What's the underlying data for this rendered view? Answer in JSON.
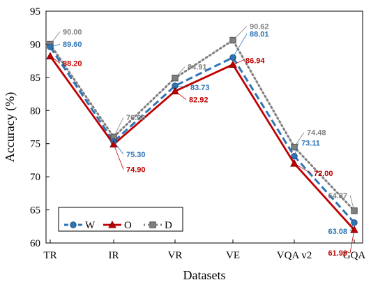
{
  "chart_data": {
    "type": "line",
    "title": "",
    "xlabel": "Datasets",
    "ylabel": "Accuracy (%)",
    "categories": [
      "TR",
      "IR",
      "VR",
      "VE",
      "VQA v2",
      "GQA"
    ],
    "ylim": [
      60,
      95
    ],
    "yticks": [
      60,
      65,
      70,
      75,
      80,
      85,
      90,
      95
    ],
    "grid": false,
    "legend_position": "bottom-left",
    "series": [
      {
        "name": "W",
        "values": [
          89.6,
          75.3,
          83.73,
          88.01,
          73.11,
          63.08
        ],
        "labels": [
          "89.60",
          "75.30",
          "83.73",
          "88.01",
          "73.11",
          "63.08"
        ],
        "color": "#2e75b6",
        "line_style": "dashed",
        "marker": "circle"
      },
      {
        "name": "O",
        "values": [
          88.2,
          74.9,
          82.92,
          86.94,
          72.0,
          61.99
        ],
        "labels": [
          "88.20",
          "74.90",
          "82.92",
          "86.94",
          "72.00",
          "61.99"
        ],
        "color": "#c00000",
        "line_style": "solid",
        "marker": "triangle"
      },
      {
        "name": "D",
        "values": [
          90.0,
          76.0,
          84.91,
          90.62,
          74.48,
          64.87
        ],
        "labels": [
          "90.00",
          "76.00",
          "84.91",
          "90.62",
          "74.48",
          "64.87"
        ],
        "color": "#808080",
        "line_style": "dotted",
        "marker": "square"
      }
    ]
  }
}
